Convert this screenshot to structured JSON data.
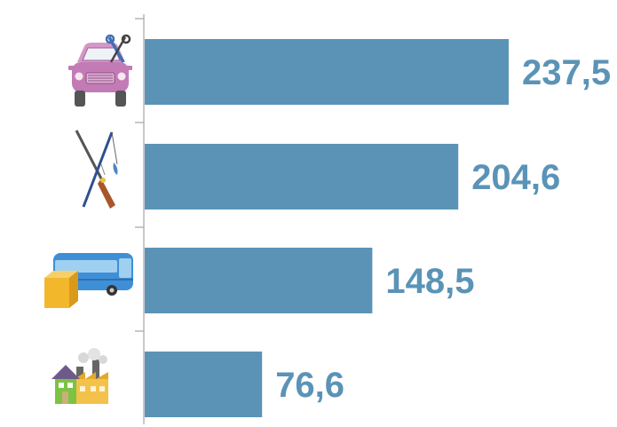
{
  "chart_data": {
    "type": "bar",
    "orientation": "horizontal",
    "title": "",
    "xlabel": "",
    "ylabel": "",
    "categories": [
      {
        "icon": "car-repair-icon",
        "value": 237.5,
        "label": "237,5"
      },
      {
        "icon": "hunting-fishing-icon",
        "value": 204.6,
        "label": "204,6"
      },
      {
        "icon": "bus-cargo-icon",
        "value": 148.5,
        "label": "148,5"
      },
      {
        "icon": "house-factory-icon",
        "value": 76.6,
        "label": "76,6"
      }
    ],
    "xlim": [
      0,
      237.5
    ],
    "grid": false,
    "legend": "none",
    "colors": {
      "bar": "#5b93b7",
      "label": "#5b93b7",
      "axis": "#b0b0b0"
    }
  }
}
